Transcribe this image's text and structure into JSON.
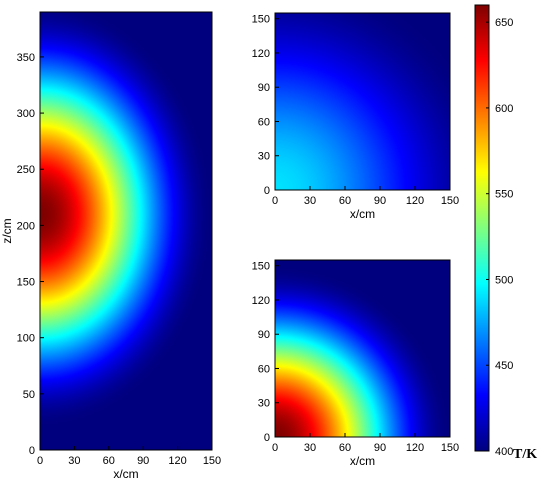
{
  "chart_data": [
    {
      "type": "heatmap",
      "xlabel": "x/cm",
      "ylabel": "z/cm",
      "xlim": [
        0,
        150
      ],
      "ylim": [
        0,
        390
      ],
      "xticks": [
        0,
        30,
        60,
        90,
        120,
        150
      ],
      "yticks": [
        0,
        50,
        100,
        150,
        200,
        250,
        300,
        350
      ],
      "field": {
        "peak_T": 660,
        "peak_at": [
          0,
          210
        ],
        "falloff_radius_x": 150,
        "falloff_radius_z": 190,
        "min_T": 400
      },
      "description_values": {
        "T_at_center": 660,
        "T_at_edge": 400
      }
    },
    {
      "type": "heatmap",
      "xlabel": "x/cm",
      "ylabel": "",
      "xlim": [
        0,
        150
      ],
      "ylim": [
        0,
        155
      ],
      "xticks": [
        0,
        30,
        60,
        90,
        120,
        150
      ],
      "yticks": [
        0,
        30,
        60,
        90,
        120,
        150
      ],
      "field": {
        "peak_T": 490,
        "peak_at": [
          0,
          0
        ],
        "falloff_radius_x": 190,
        "falloff_radius_z": 190,
        "min_T": 400
      }
    },
    {
      "type": "heatmap",
      "xlabel": "x/cm",
      "ylabel": "",
      "xlim": [
        0,
        150
      ],
      "ylim": [
        0,
        155
      ],
      "xticks": [
        0,
        30,
        60,
        90,
        120,
        150
      ],
      "yticks": [
        0,
        30,
        60,
        90,
        120,
        150
      ],
      "field": {
        "peak_T": 660,
        "peak_at": [
          0,
          0
        ],
        "falloff_radius_x": 150,
        "falloff_radius_z": 150,
        "min_T": 400
      }
    }
  ],
  "colorbar": {
    "title": "T/K",
    "min": 400,
    "max": 660,
    "ticks": [
      400,
      450,
      500,
      550,
      600,
      650
    ],
    "colors": [
      "#00007f",
      "#0000ff",
      "#007fff",
      "#00ffff",
      "#7fff7f",
      "#ffff00",
      "#ff7f00",
      "#ff0000",
      "#7f0000"
    ]
  }
}
